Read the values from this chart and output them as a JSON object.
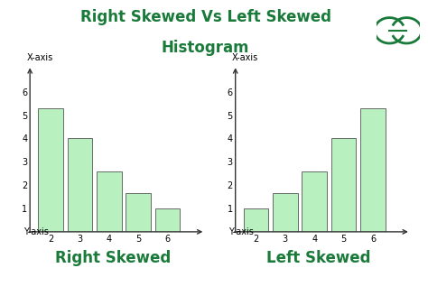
{
  "title_line1": "Right Skewed Vs Left Skewed",
  "title_line2": "Histogram",
  "title_color": "#1a7a3a",
  "title_fontsize": 12,
  "bg_color": "#ffffff",
  "bar_color": "#b8f0c0",
  "bar_edge_color": "#555555",
  "categories": [
    2,
    3,
    4,
    5,
    6
  ],
  "right_skewed_values": [
    5.3,
    4.0,
    2.6,
    1.65,
    1.0
  ],
  "left_skewed_values": [
    1.0,
    1.65,
    2.6,
    4.0,
    5.3
  ],
  "x_label": "Y-axis",
  "y_label": "X-axis",
  "ylim": [
    0,
    6.8
  ],
  "yticks": [
    1,
    2,
    3,
    4,
    5,
    6
  ],
  "label_right": "Right Skewed",
  "label_left": "Left Skewed",
  "label_color": "#1a7a3a",
  "label_fontsize": 12,
  "tick_fontsize": 7,
  "axis_label_fontsize": 7
}
